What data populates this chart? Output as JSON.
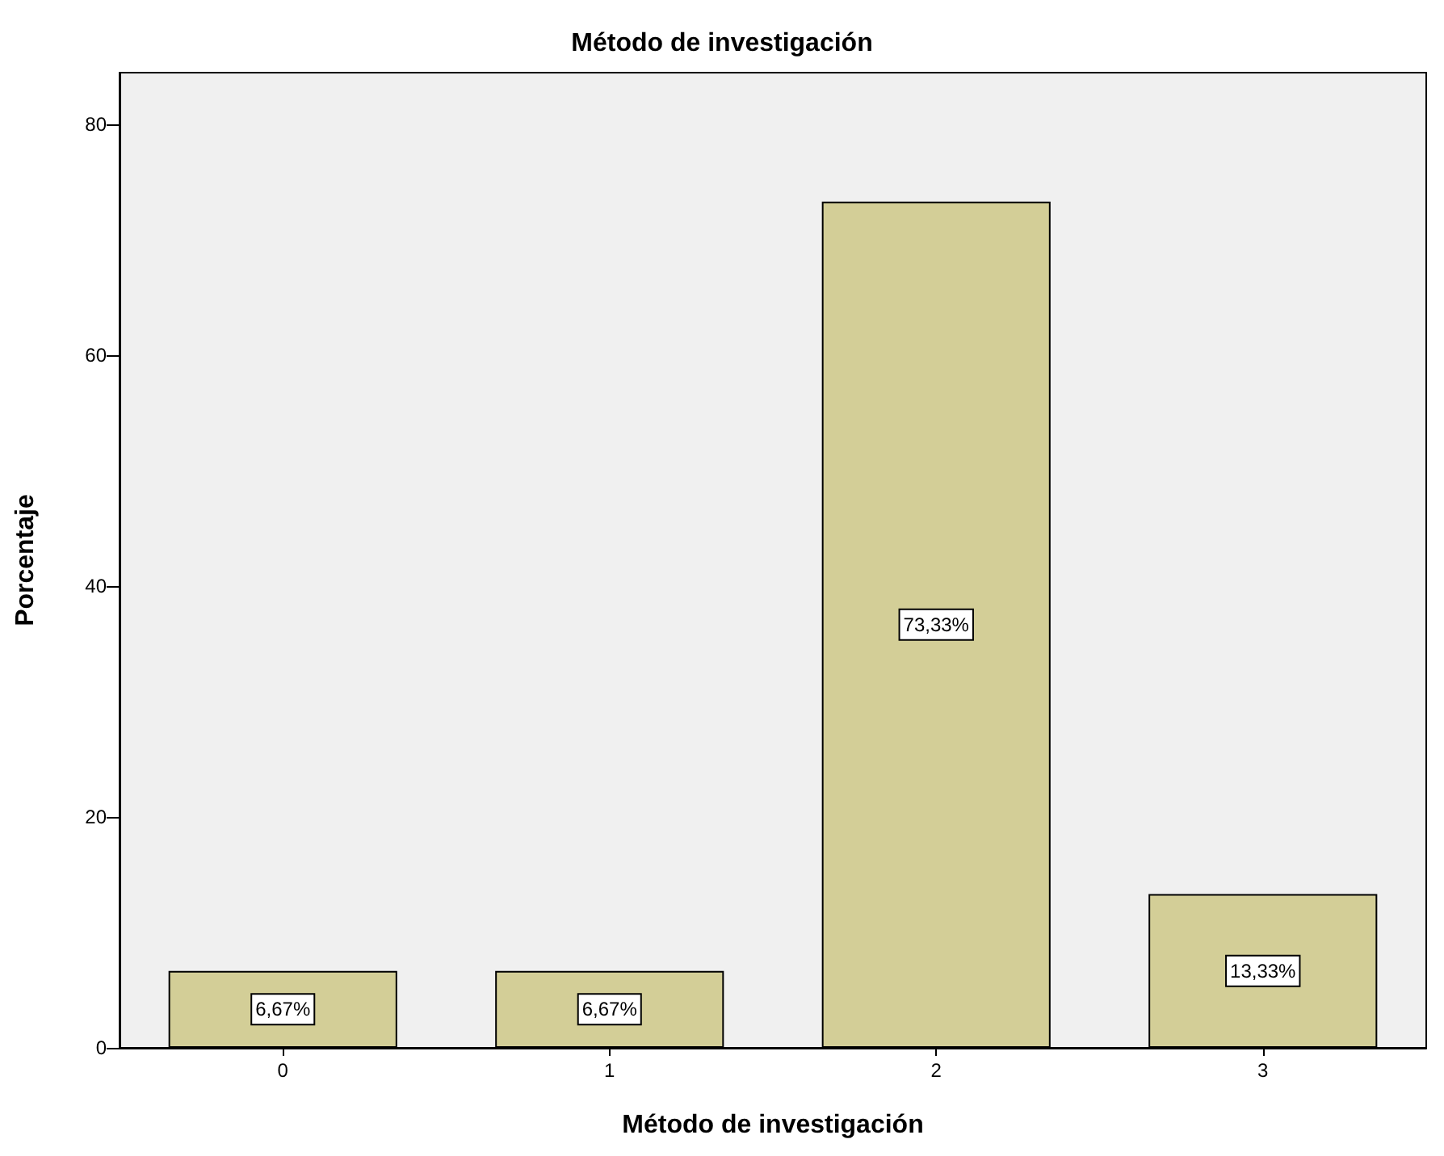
{
  "chart_data": {
    "type": "bar",
    "title": "Método de investigación",
    "xlabel": "Método de investigación",
    "ylabel": "Porcentaje",
    "categories": [
      "0",
      "1",
      "2",
      "3"
    ],
    "values": [
      6.67,
      6.67,
      73.33,
      13.33
    ],
    "value_labels": [
      "6,67%",
      "6,67%",
      "73,33%",
      "13,33%"
    ],
    "color": "#d3ce97",
    "ylim": [
      0,
      84.5
    ],
    "yticks": [
      0,
      20,
      40,
      60,
      80
    ],
    "grid": false
  }
}
